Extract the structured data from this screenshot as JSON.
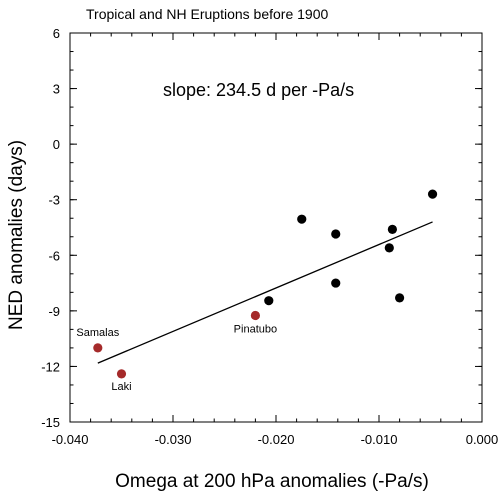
{
  "chart_data": {
    "type": "scatter",
    "title": "Tropical and NH Eruptions before 1900",
    "xlabel": "Omega at 200 hPa anomalies (-Pa/s)",
    "ylabel": "NED anomalies (days)",
    "xlim": [
      -0.04,
      0.0
    ],
    "ylim": [
      -15,
      6
    ],
    "x_ticks": [
      -0.04,
      -0.03,
      -0.02,
      -0.01,
      0.0
    ],
    "x_tick_labels": [
      "-0.040",
      "-0.030",
      "-0.020",
      "-0.010",
      "0.000"
    ],
    "y_ticks": [
      6,
      3,
      0,
      -3,
      -6,
      -9,
      -12,
      -15
    ],
    "y_tick_labels": [
      "6",
      "3",
      "0",
      "-3",
      "-6",
      "-9",
      "-12",
      "-15"
    ],
    "annotation": "slope: 234.5 d per -Pa/s",
    "grid": false,
    "legend": "none",
    "colors": {
      "black_points": "#000000",
      "highlighted_points": "#a52a2a",
      "fit_line": "#000000"
    },
    "series": [
      {
        "points": [
          {
            "x": -0.0048,
            "y": -2.7
          },
          {
            "x": -0.0175,
            "y": -4.05
          },
          {
            "x": -0.0142,
            "y": -4.85
          },
          {
            "x": -0.0087,
            "y": -4.6
          },
          {
            "x": -0.009,
            "y": -5.6
          },
          {
            "x": -0.0142,
            "y": -7.5
          },
          {
            "x": -0.008,
            "y": -8.3
          },
          {
            "x": -0.0207,
            "y": -8.45
          }
        ]
      },
      {
        "points": [
          {
            "x": -0.0373,
            "y": -11.0,
            "label": "Samalas"
          },
          {
            "x": -0.035,
            "y": -12.4,
            "label": "Laki"
          },
          {
            "x": -0.022,
            "y": -9.25,
            "label": "Pinatubo"
          }
        ]
      }
    ],
    "fit_line": {
      "x": [
        -0.0373,
        -0.0048
      ],
      "y": [
        -11.82,
        -4.2
      ]
    }
  }
}
